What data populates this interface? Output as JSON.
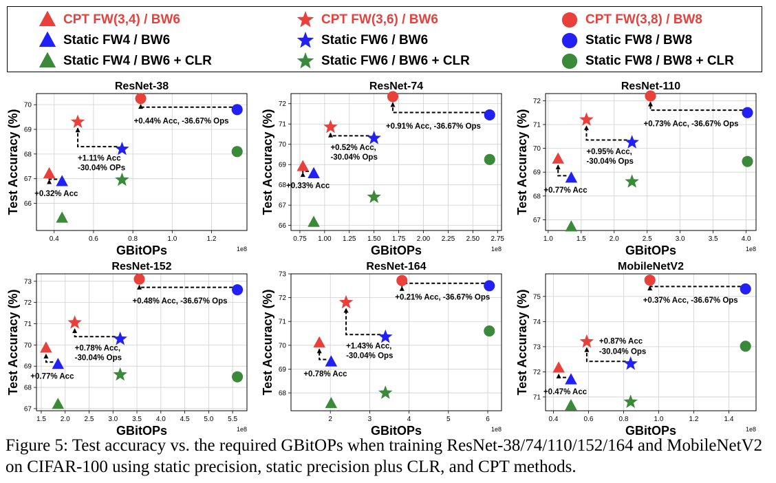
{
  "legend": {
    "items": [
      {
        "label": "CPT FW(3,4) / BW6",
        "marker": "triangle",
        "color": "#e8413c",
        "text_color": "#e8413c"
      },
      {
        "label": "Static FW4 / BW6",
        "marker": "triangle",
        "color": "#2121f5",
        "text_color": "#000000"
      },
      {
        "label": "Static FW4 / BW6 + CLR",
        "marker": "triangle",
        "color": "#3a8a3a",
        "text_color": "#000000"
      },
      {
        "label": "CPT FW(3,6) / BW6",
        "marker": "star",
        "color": "#e8413c",
        "text_color": "#e8413c"
      },
      {
        "label": "Static FW6 / BW6",
        "marker": "star",
        "color": "#2121f5",
        "text_color": "#000000"
      },
      {
        "label": "Static FW6 / BW6 + CLR",
        "marker": "star",
        "color": "#3a8a3a",
        "text_color": "#000000"
      },
      {
        "label": "CPT FW(3,8) / BW8",
        "marker": "circle",
        "color": "#e8413c",
        "text_color": "#e8413c"
      },
      {
        "label": "Static FW8 / BW8",
        "marker": "circle",
        "color": "#2121f5",
        "text_color": "#000000"
      },
      {
        "label": "Static FW8 / BW8 + CLR",
        "marker": "circle",
        "color": "#3a8a3a",
        "text_color": "#000000"
      }
    ]
  },
  "chart_data": [
    {
      "type": "scatter",
      "title": "ResNet-38",
      "xlabel": "GBitOPs",
      "ylabel": "Test Accuracy (%)",
      "x_scale_label": "1e8",
      "xlim": [
        0.31,
        1.38
      ],
      "ylim": [
        64.9,
        70.45
      ],
      "xticks": [
        0.4,
        0.6,
        0.8,
        1.0,
        1.2
      ],
      "xtick_labels": [
        "0.4",
        "0.6",
        "0.8",
        "1.0",
        "1.2"
      ],
      "yticks": [
        66,
        67,
        68,
        69,
        70
      ],
      "ytick_labels": [
        "66",
        "67",
        "68",
        "69",
        "70"
      ],
      "points": [
        {
          "series": "CPT FW(3,4) / BW6",
          "x": 0.375,
          "y": 67.2
        },
        {
          "series": "Static FW4 / BW6",
          "x": 0.44,
          "y": 66.88
        },
        {
          "series": "Static FW4 / BW6 + CLR",
          "x": 0.44,
          "y": 65.4
        },
        {
          "series": "CPT FW(3,6) / BW6",
          "x": 0.52,
          "y": 69.3
        },
        {
          "series": "Static FW6 / BW6",
          "x": 0.745,
          "y": 68.2
        },
        {
          "series": "Static FW6 / BW6 + CLR",
          "x": 0.745,
          "y": 66.95
        },
        {
          "series": "CPT FW(3,8) / BW8",
          "x": 0.84,
          "y": 70.25
        },
        {
          "series": "Static FW8 / BW8",
          "x": 1.33,
          "y": 69.8
        },
        {
          "series": "Static FW8 / BW8 + CLR",
          "x": 1.33,
          "y": 68.1
        }
      ],
      "annotations": [
        "+0.32% Acc",
        "+1.11% Acc",
        "-30.04% OPs",
        "+0.44% Acc, -36.67% Ops"
      ]
    },
    {
      "type": "scatter",
      "title": "ResNet-74",
      "xlabel": "GBitOPs",
      "ylabel": "Test Accuracy (%)",
      "x_scale_label": "1e8",
      "xlim": [
        0.66,
        2.79
      ],
      "ylim": [
        65.75,
        72.5
      ],
      "xticks": [
        0.75,
        1.0,
        1.25,
        1.5,
        1.75,
        2.0,
        2.25,
        2.5,
        2.75
      ],
      "xtick_labels": [
        "0.75",
        "1.00",
        "1.25",
        "1.50",
        "1.75",
        "2.00",
        "2.25",
        "2.50",
        "2.75"
      ],
      "yticks": [
        66,
        67,
        68,
        69,
        70,
        71,
        72
      ],
      "ytick_labels": [
        "66",
        "67",
        "68",
        "69",
        "70",
        "71",
        "72"
      ],
      "points": [
        {
          "series": "CPT FW(3,4) / BW6",
          "x": 0.78,
          "y": 68.9
        },
        {
          "series": "Static FW4 / BW6",
          "x": 0.89,
          "y": 68.55
        },
        {
          "series": "Static FW4 / BW6 + CLR",
          "x": 0.89,
          "y": 66.15
        },
        {
          "series": "CPT FW(3,6) / BW6",
          "x": 1.06,
          "y": 70.85
        },
        {
          "series": "Static FW6 / BW6",
          "x": 1.5,
          "y": 70.3
        },
        {
          "series": "Static FW6 / BW6 + CLR",
          "x": 1.5,
          "y": 67.4
        },
        {
          "series": "CPT FW(3,8) / BW8",
          "x": 1.69,
          "y": 72.35
        },
        {
          "series": "Static FW8 / BW8",
          "x": 2.67,
          "y": 71.45
        },
        {
          "series": "Static FW8 / BW8 + CLR",
          "x": 2.67,
          "y": 69.25
        }
      ],
      "annotations": [
        "+0.33% Acc",
        "+0.52% Acc,",
        "-30.04% Ops",
        "+0.91% Acc, -36.67% Ops"
      ]
    },
    {
      "type": "scatter",
      "title": "ResNet-110",
      "xlabel": "GBitOPs",
      "ylabel": "Test Accuracy (%)",
      "x_scale_label": "1e8",
      "xlim": [
        0.96,
        4.15
      ],
      "ylim": [
        66.55,
        72.3
      ],
      "xticks": [
        1.0,
        1.5,
        2.0,
        2.5,
        3.0,
        3.5,
        4.0
      ],
      "xtick_labels": [
        "1.0",
        "1.5",
        "2.0",
        "2.5",
        "3.0",
        "3.5",
        "4.0"
      ],
      "yticks": [
        67,
        68,
        69,
        70,
        71,
        72
      ],
      "ytick_labels": [
        "67",
        "68",
        "69",
        "70",
        "71",
        "72"
      ],
      "points": [
        {
          "series": "CPT FW(3,4) / BW6",
          "x": 1.15,
          "y": 69.55
        },
        {
          "series": "Static FW4 / BW6",
          "x": 1.35,
          "y": 68.75
        },
        {
          "series": "Static FW4 / BW6 + CLR",
          "x": 1.35,
          "y": 66.7
        },
        {
          "series": "CPT FW(3,6) / BW6",
          "x": 1.58,
          "y": 71.2
        },
        {
          "series": "Static FW6 / BW6",
          "x": 2.27,
          "y": 70.25
        },
        {
          "series": "Static FW6 / BW6 + CLR",
          "x": 2.27,
          "y": 68.6
        },
        {
          "series": "CPT FW(3,8) / BW8",
          "x": 2.55,
          "y": 72.2
        },
        {
          "series": "Static FW8 / BW8",
          "x": 4.02,
          "y": 71.5
        },
        {
          "series": "Static FW8 / BW8 + CLR",
          "x": 4.02,
          "y": 69.45
        }
      ],
      "annotations": [
        "+0.77% Acc",
        "+0.95% Acc,",
        "-30.04% Ops",
        "+0.73% Acc, -36.67% Ops"
      ]
    },
    {
      "type": "scatter",
      "title": "ResNet-152",
      "xlabel": "GBitOPs",
      "ylabel": "Test Accuracy (%)",
      "x_scale_label": "1e8",
      "xlim": [
        1.4,
        5.8
      ],
      "ylim": [
        66.9,
        73.35
      ],
      "xticks": [
        1.5,
        2.0,
        2.5,
        3.0,
        3.5,
        4.0,
        4.5,
        5.0,
        5.5
      ],
      "xtick_labels": [
        "1.5",
        "2.0",
        "2.5",
        "3.0",
        "3.5",
        "4.0",
        "4.5",
        "5.0",
        "5.5"
      ],
      "yticks": [
        67,
        68,
        69,
        70,
        71,
        72,
        73
      ],
      "ytick_labels": [
        "67",
        "68",
        "69",
        "70",
        "71",
        "72",
        "73"
      ],
      "points": [
        {
          "series": "CPT FW(3,4) / BW6",
          "x": 1.6,
          "y": 69.85
        },
        {
          "series": "Static FW4 / BW6",
          "x": 1.85,
          "y": 69.08
        },
        {
          "series": "Static FW4 / BW6 + CLR",
          "x": 1.85,
          "y": 67.2
        },
        {
          "series": "CPT FW(3,6) / BW6",
          "x": 2.2,
          "y": 71.05
        },
        {
          "series": "Static FW6 / BW6",
          "x": 3.15,
          "y": 70.28
        },
        {
          "series": "Static FW6 / BW6 + CLR",
          "x": 3.15,
          "y": 68.6
        },
        {
          "series": "CPT FW(3,8) / BW8",
          "x": 3.55,
          "y": 73.1
        },
        {
          "series": "Static FW8 / BW8",
          "x": 5.6,
          "y": 72.6
        },
        {
          "series": "Static FW8 / BW8 + CLR",
          "x": 5.6,
          "y": 68.5
        }
      ],
      "annotations": [
        "+0.77% Acc",
        "+0.78% Acc,",
        "-30.04% Ops",
        "+0.48% Acc, -36.67% Ops"
      ]
    },
    {
      "type": "scatter",
      "title": "ResNet-164",
      "xlabel": "GBitOPs",
      "ylabel": "Test Accuracy (%)",
      "x_scale_label": "1e8",
      "xlim": [
        1.0,
        6.35
      ],
      "ylim": [
        67.25,
        73.0
      ],
      "xticks": [
        2,
        3,
        4,
        5,
        6
      ],
      "xtick_labels": [
        "2",
        "3",
        "4",
        "5",
        "6"
      ],
      "yticks": [
        68,
        69,
        70,
        71,
        72,
        73
      ],
      "ytick_labels": [
        "68",
        "69",
        "70",
        "71",
        "72",
        "73"
      ],
      "points": [
        {
          "series": "CPT FW(3,4) / BW6",
          "x": 1.72,
          "y": 70.1
        },
        {
          "series": "Static FW4 / BW6",
          "x": 2.02,
          "y": 69.3
        },
        {
          "series": "Static FW4 / BW6 + CLR",
          "x": 2.02,
          "y": 67.55
        },
        {
          "series": "CPT FW(3,6) / BW6",
          "x": 2.4,
          "y": 71.8
        },
        {
          "series": "Static FW6 / BW6",
          "x": 3.4,
          "y": 70.35
        },
        {
          "series": "Static FW6 / BW6 + CLR",
          "x": 3.4,
          "y": 68.0
        },
        {
          "series": "CPT FW(3,8) / BW8",
          "x": 3.82,
          "y": 72.72
        },
        {
          "series": "Static FW8 / BW8",
          "x": 6.04,
          "y": 72.5
        },
        {
          "series": "Static FW8 / BW8 + CLR",
          "x": 6.04,
          "y": 70.6
        }
      ],
      "annotations": [
        "+0.78% Acc",
        "+1.43% Acc,",
        "-30.04% Ops",
        "+0.21% Acc, -36.67% Ops"
      ]
    },
    {
      "type": "scatter",
      "title": "MobileNetV2",
      "xlabel": "GBitOPs",
      "ylabel": "Test Accuracy (%)",
      "x_scale_label": "1e8",
      "xlim": [
        0.355,
        1.555
      ],
      "ylim": [
        70.45,
        75.9
      ],
      "xticks": [
        0.4,
        0.6,
        0.8,
        1.0,
        1.2,
        1.4
      ],
      "xtick_labels": [
        "0.4",
        "0.6",
        "0.8",
        "1.0",
        "1.2",
        "1.4"
      ],
      "yticks": [
        71,
        72,
        73,
        74,
        75
      ],
      "ytick_labels": [
        "71",
        "72",
        "73",
        "74",
        "75"
      ],
      "points": [
        {
          "series": "CPT FW(3,4) / BW6",
          "x": 0.43,
          "y": 72.15
        },
        {
          "series": "Static FW4 / BW6",
          "x": 0.5,
          "y": 71.68
        },
        {
          "series": "Static FW4 / BW6 + CLR",
          "x": 0.5,
          "y": 70.65
        },
        {
          "series": "CPT FW(3,6) / BW6",
          "x": 0.59,
          "y": 73.2
        },
        {
          "series": "Static FW6 / BW6",
          "x": 0.84,
          "y": 72.32
        },
        {
          "series": "Static FW6 / BW6 + CLR",
          "x": 0.84,
          "y": 70.8
        },
        {
          "series": "CPT FW(3,8) / BW8",
          "x": 0.95,
          "y": 75.65
        },
        {
          "series": "Static FW8 / BW8",
          "x": 1.495,
          "y": 75.3
        },
        {
          "series": "Static FW8 / BW8 + CLR",
          "x": 1.495,
          "y": 73.02
        }
      ],
      "annotations": [
        "+0.47% Acc",
        "+0.87% Acc",
        "-30.04% Ops",
        "+0.37% Acc, -36.67% Ops"
      ]
    }
  ],
  "caption": "Figure 5: Test accuracy vs. the required GBitOPs when training ResNet-38/74/110/152/164 and MobileNetV2 on CIFAR-100 using static precision, static precision plus CLR, and CPT methods."
}
